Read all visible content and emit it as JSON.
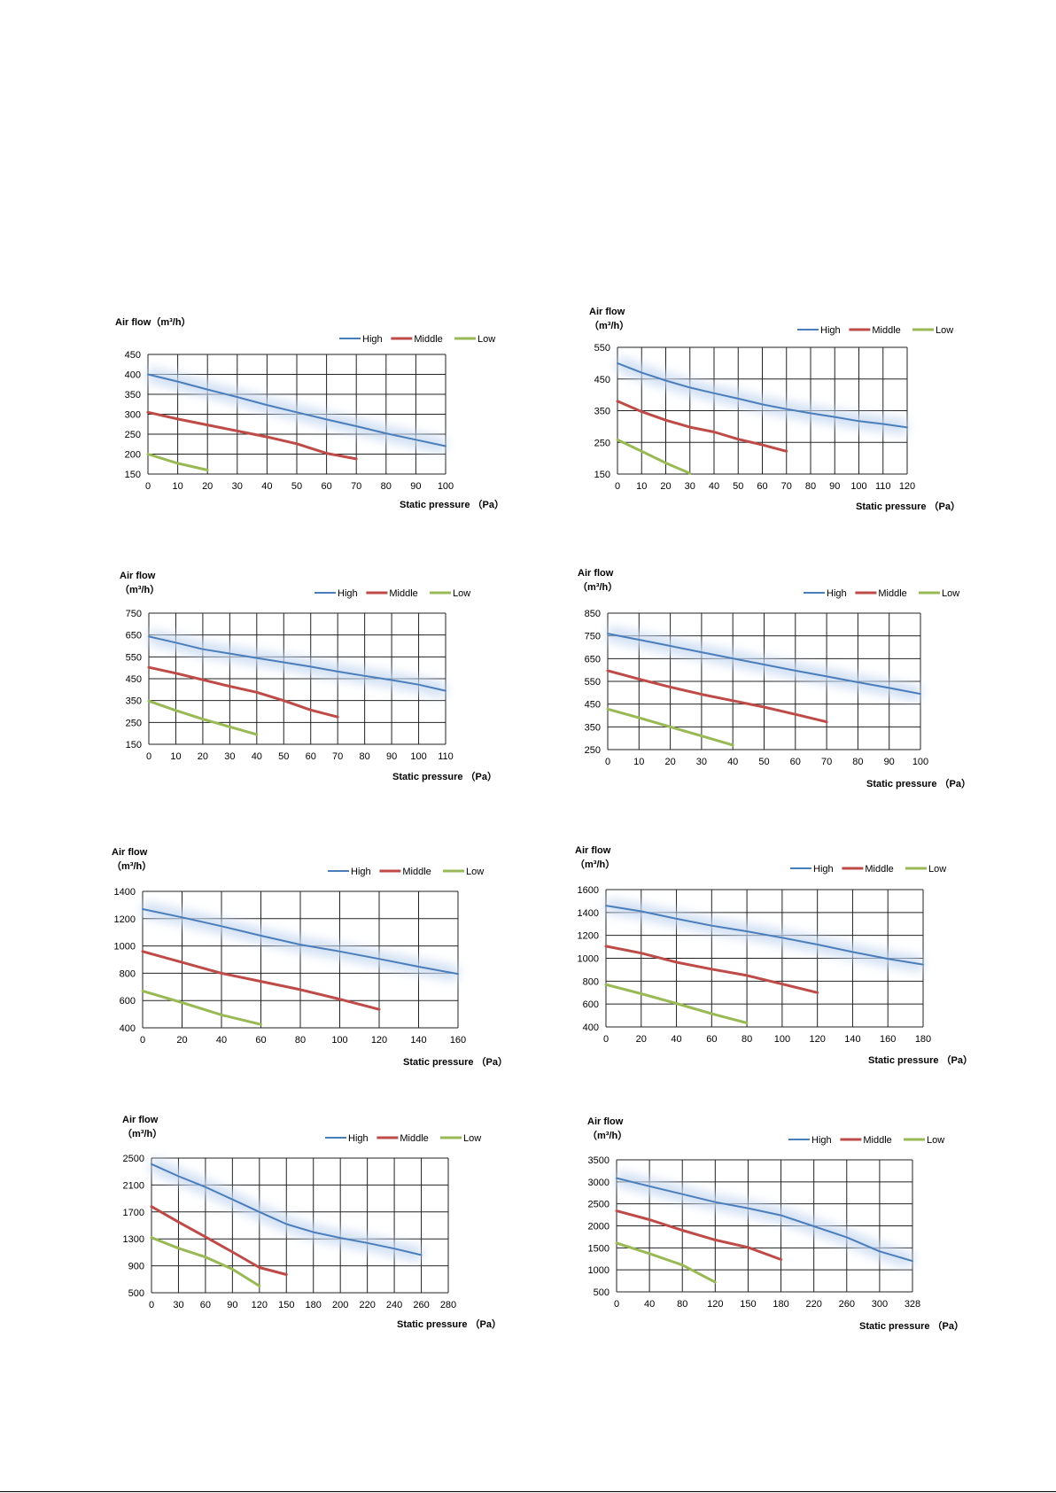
{
  "chart_data": [
    {
      "type": "line",
      "ylabel": "Air flow（m³/h）",
      "xlabel": "Static pressure （Pa）",
      "x_ticks": [
        0,
        10,
        20,
        30,
        40,
        50,
        60,
        70,
        80,
        90,
        100
      ],
      "y_ticks": [
        150,
        200,
        250,
        300,
        350,
        400,
        450
      ],
      "xlim": [
        0,
        100
      ],
      "ylim": [
        150,
        450
      ],
      "grid": true,
      "legend": "top-right",
      "series": [
        {
          "name": "High",
          "color": "#4a7ebb",
          "points": [
            [
              0,
              400
            ],
            [
              10,
              382
            ],
            [
              20,
              362
            ],
            [
              30,
              343
            ],
            [
              40,
              323
            ],
            [
              50,
              305
            ],
            [
              60,
              287
            ],
            [
              70,
              270
            ],
            [
              80,
              252
            ],
            [
              90,
              236
            ],
            [
              100,
              220
            ]
          ]
        },
        {
          "name": "Middle",
          "color": "#be4b48",
          "points": [
            [
              0,
              305
            ],
            [
              10,
              288
            ],
            [
              20,
              273
            ],
            [
              30,
              258
            ],
            [
              40,
              243
            ],
            [
              50,
              226
            ],
            [
              60,
              202
            ],
            [
              70,
              188
            ]
          ]
        },
        {
          "name": "Low",
          "color": "#98b954",
          "points": [
            [
              0,
              200
            ],
            [
              10,
              177
            ],
            [
              20,
              160
            ]
          ]
        }
      ]
    },
    {
      "type": "line",
      "ylabel": "Air flow\n（m³/h）",
      "xlabel": "Static pressure （Pa）",
      "x_ticks": [
        0,
        10,
        20,
        30,
        40,
        50,
        60,
        70,
        80,
        90,
        100,
        110,
        120
      ],
      "y_ticks": [
        150,
        250,
        350,
        450,
        550
      ],
      "xlim": [
        0,
        120
      ],
      "ylim": [
        150,
        550
      ],
      "grid": true,
      "legend": "top-right",
      "series": [
        {
          "name": "High",
          "color": "#4a7ebb",
          "points": [
            [
              0,
              500
            ],
            [
              10,
              470
            ],
            [
              20,
              445
            ],
            [
              30,
              423
            ],
            [
              40,
              405
            ],
            [
              50,
              388
            ],
            [
              60,
              370
            ],
            [
              70,
              355
            ],
            [
              80,
              342
            ],
            [
              90,
              330
            ],
            [
              100,
              317
            ],
            [
              110,
              308
            ],
            [
              120,
              297
            ]
          ]
        },
        {
          "name": "Middle",
          "color": "#be4b48",
          "points": [
            [
              0,
              380
            ],
            [
              10,
              347
            ],
            [
              20,
              320
            ],
            [
              30,
              298
            ],
            [
              40,
              283
            ],
            [
              50,
              260
            ],
            [
              60,
              242
            ],
            [
              70,
              222
            ]
          ]
        },
        {
          "name": "Low",
          "color": "#98b954",
          "points": [
            [
              0,
              258
            ],
            [
              10,
              222
            ],
            [
              20,
              185
            ],
            [
              30,
              152
            ]
          ]
        }
      ]
    },
    {
      "type": "line",
      "ylabel": "Air flow\n（m³/h）",
      "xlabel": "Static pressure （Pa）",
      "x_ticks": [
        0,
        10,
        20,
        30,
        40,
        50,
        60,
        70,
        80,
        90,
        100,
        110
      ],
      "y_ticks": [
        150,
        250,
        350,
        450,
        550,
        650,
        750
      ],
      "xlim": [
        0,
        110
      ],
      "ylim": [
        150,
        750
      ],
      "grid": true,
      "legend": "top-right",
      "series": [
        {
          "name": "High",
          "color": "#4a7ebb",
          "points": [
            [
              0,
              643
            ],
            [
              10,
              615
            ],
            [
              20,
              585
            ],
            [
              30,
              565
            ],
            [
              40,
              545
            ],
            [
              50,
              525
            ],
            [
              60,
              505
            ],
            [
              70,
              483
            ],
            [
              80,
              463
            ],
            [
              90,
              444
            ],
            [
              100,
              423
            ],
            [
              110,
              395
            ]
          ]
        },
        {
          "name": "Middle",
          "color": "#be4b48",
          "points": [
            [
              0,
              502
            ],
            [
              10,
              475
            ],
            [
              20,
              445
            ],
            [
              30,
              415
            ],
            [
              40,
              388
            ],
            [
              50,
              350
            ],
            [
              60,
              307
            ],
            [
              70,
              275
            ]
          ]
        },
        {
          "name": "Low",
          "color": "#98b954",
          "points": [
            [
              0,
              348
            ],
            [
              10,
              305
            ],
            [
              20,
              265
            ],
            [
              30,
              230
            ],
            [
              40,
              195
            ]
          ]
        }
      ]
    },
    {
      "type": "line",
      "ylabel": "Air flow\n（m³/h）",
      "xlabel": "Static pressure （Pa）",
      "x_ticks": [
        0,
        10,
        20,
        30,
        40,
        50,
        60,
        70,
        80,
        90,
        100
      ],
      "y_ticks": [
        250,
        350,
        450,
        550,
        650,
        750,
        850
      ],
      "xlim": [
        0,
        100
      ],
      "ylim": [
        250,
        850
      ],
      "grid": true,
      "legend": "top-right",
      "series": [
        {
          "name": "High",
          "color": "#4a7ebb",
          "points": [
            [
              0,
              760
            ],
            [
              10,
              733
            ],
            [
              20,
              706
            ],
            [
              30,
              678
            ],
            [
              40,
              651
            ],
            [
              50,
              624
            ],
            [
              60,
              597
            ],
            [
              70,
              572
            ],
            [
              80,
              546
            ],
            [
              90,
              521
            ],
            [
              100,
              495
            ]
          ]
        },
        {
          "name": "Middle",
          "color": "#be4b48",
          "points": [
            [
              0,
              597
            ],
            [
              10,
              560
            ],
            [
              20,
              525
            ],
            [
              30,
              493
            ],
            [
              40,
              465
            ],
            [
              50,
              437
            ],
            [
              60,
              405
            ],
            [
              70,
              372
            ]
          ]
        },
        {
          "name": "Low",
          "color": "#98b954",
          "points": [
            [
              0,
              428
            ],
            [
              10,
              390
            ],
            [
              20,
              350
            ],
            [
              30,
              310
            ],
            [
              40,
              270
            ]
          ]
        }
      ]
    },
    {
      "type": "line",
      "ylabel": "Air flow\n（m³/h）",
      "xlabel": "Static pressure （Pa）",
      "x_ticks": [
        0,
        20,
        40,
        60,
        80,
        100,
        120,
        140,
        160
      ],
      "y_ticks": [
        400,
        600,
        800,
        1000,
        1200,
        1400
      ],
      "xlim": [
        0,
        160
      ],
      "ylim": [
        400,
        1400
      ],
      "grid": true,
      "legend": "top-right",
      "series": [
        {
          "name": "High",
          "color": "#4a7ebb",
          "points": [
            [
              0,
              1270
            ],
            [
              20,
              1210
            ],
            [
              40,
              1145
            ],
            [
              60,
              1075
            ],
            [
              80,
              1010
            ],
            [
              100,
              960
            ],
            [
              120,
              905
            ],
            [
              140,
              848
            ],
            [
              160,
              795
            ]
          ]
        },
        {
          "name": "Middle",
          "color": "#be4b48",
          "points": [
            [
              0,
              960
            ],
            [
              20,
              880
            ],
            [
              40,
              800
            ],
            [
              60,
              740
            ],
            [
              80,
              680
            ],
            [
              100,
              610
            ],
            [
              120,
              535
            ]
          ]
        },
        {
          "name": "Low",
          "color": "#98b954",
          "points": [
            [
              0,
              670
            ],
            [
              20,
              585
            ],
            [
              40,
              495
            ],
            [
              60,
              425
            ]
          ]
        }
      ]
    },
    {
      "type": "line",
      "ylabel": "Air flow\n（m³/h）",
      "xlabel": "Static pressure （Pa）",
      "x_ticks": [
        0,
        20,
        40,
        60,
        80,
        100,
        120,
        140,
        160,
        180
      ],
      "y_ticks": [
        400,
        600,
        800,
        1000,
        1200,
        1400,
        1600
      ],
      "xlim": [
        0,
        180
      ],
      "ylim": [
        400,
        1600
      ],
      "grid": true,
      "legend": "top-right",
      "series": [
        {
          "name": "High",
          "color": "#4a7ebb",
          "points": [
            [
              0,
              1460
            ],
            [
              20,
              1410
            ],
            [
              40,
              1345
            ],
            [
              60,
              1285
            ],
            [
              80,
              1235
            ],
            [
              100,
              1180
            ],
            [
              120,
              1120
            ],
            [
              140,
              1055
            ],
            [
              160,
              995
            ],
            [
              180,
              945
            ]
          ]
        },
        {
          "name": "Middle",
          "color": "#be4b48",
          "points": [
            [
              0,
              1105
            ],
            [
              20,
              1045
            ],
            [
              40,
              965
            ],
            [
              60,
              905
            ],
            [
              80,
              850
            ],
            [
              100,
              775
            ],
            [
              120,
              700
            ]
          ]
        },
        {
          "name": "Low",
          "color": "#98b954",
          "points": [
            [
              0,
              770
            ],
            [
              20,
              690
            ],
            [
              40,
              605
            ],
            [
              60,
              515
            ],
            [
              80,
              435
            ]
          ]
        }
      ]
    },
    {
      "type": "line",
      "ylabel": "Air flow\n（m³/h）",
      "xlabel": "Static pressure （Pa）",
      "x_ticks": [
        0,
        30,
        60,
        90,
        120,
        150,
        180,
        200,
        220,
        240,
        260,
        280
      ],
      "y_ticks": [
        500,
        900,
        1300,
        1700,
        2100,
        2500
      ],
      "xlim": [
        0,
        280
      ],
      "ylim": [
        500,
        2500
      ],
      "grid": true,
      "legend": "top-right",
      "series": [
        {
          "name": "High",
          "color": "#4a7ebb",
          "points": [
            [
              0,
              2410
            ],
            [
              30,
              2230
            ],
            [
              60,
              2070
            ],
            [
              90,
              1885
            ],
            [
              120,
              1700
            ],
            [
              150,
              1520
            ],
            [
              180,
              1400
            ],
            [
              200,
              1315
            ],
            [
              220,
              1240
            ],
            [
              240,
              1155
            ],
            [
              260,
              1060
            ]
          ]
        },
        {
          "name": "Middle",
          "color": "#be4b48",
          "points": [
            [
              0,
              1780
            ],
            [
              30,
              1550
            ],
            [
              60,
              1330
            ],
            [
              90,
              1105
            ],
            [
              120,
              875
            ],
            [
              150,
              770
            ]
          ]
        },
        {
          "name": "Low",
          "color": "#98b954",
          "points": [
            [
              0,
              1320
            ],
            [
              30,
              1160
            ],
            [
              60,
              1030
            ],
            [
              90,
              850
            ],
            [
              120,
              600
            ]
          ]
        }
      ]
    },
    {
      "type": "line",
      "ylabel": "Air flow\n（m³/h）",
      "xlabel": "Static pressure （Pa）",
      "x_ticks": [
        0,
        40,
        80,
        120,
        150,
        180,
        220,
        260,
        300,
        328
      ],
      "y_ticks": [
        500,
        1000,
        1500,
        2000,
        2500,
        3000,
        3500
      ],
      "xlim": [
        0,
        328
      ],
      "ylim": [
        500,
        3500
      ],
      "grid": true,
      "legend": "top-right",
      "series": [
        {
          "name": "High",
          "color": "#4a7ebb",
          "points": [
            [
              0,
              3085
            ],
            [
              40,
              2900
            ],
            [
              80,
              2720
            ],
            [
              120,
              2540
            ],
            [
              150,
              2400
            ],
            [
              180,
              2240
            ],
            [
              220,
              1990
            ],
            [
              260,
              1740
            ],
            [
              300,
              1420
            ],
            [
              328,
              1200
            ]
          ]
        },
        {
          "name": "Middle",
          "color": "#be4b48",
          "points": [
            [
              0,
              2340
            ],
            [
              40,
              2140
            ],
            [
              80,
              1900
            ],
            [
              120,
              1680
            ],
            [
              150,
              1510
            ],
            [
              180,
              1235
            ]
          ]
        },
        {
          "name": "Low",
          "color": "#98b954",
          "points": [
            [
              0,
              1610
            ],
            [
              40,
              1370
            ],
            [
              80,
              1110
            ],
            [
              120,
              720
            ]
          ]
        }
      ]
    }
  ]
}
